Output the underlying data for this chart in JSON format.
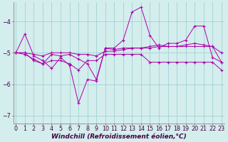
{
  "x": [
    0,
    1,
    2,
    3,
    4,
    5,
    6,
    7,
    8,
    9,
    10,
    11,
    12,
    13,
    14,
    15,
    16,
    17,
    18,
    19,
    20,
    21,
    22,
    23
  ],
  "line1": [
    -5.0,
    -4.4,
    -5.1,
    -5.25,
    -5.5,
    -5.15,
    -5.4,
    -6.6,
    -5.85,
    -5.9,
    -4.85,
    -4.85,
    -4.6,
    -3.7,
    -3.55,
    -4.45,
    -4.85,
    -4.7,
    -4.7,
    -4.6,
    -4.15,
    -4.15,
    -5.15,
    -5.3
  ],
  "line2": [
    -5.0,
    -5.05,
    -5.2,
    -5.35,
    -5.05,
    -5.1,
    -5.05,
    -5.2,
    -5.35,
    -5.85,
    -4.85,
    -4.9,
    -4.85,
    -4.85,
    -4.85,
    -4.8,
    -4.75,
    -4.8,
    -4.8,
    -4.75,
    -4.7,
    -4.75,
    -4.8,
    -5.3
  ],
  "line3": [
    -5.0,
    -5.0,
    -5.05,
    -5.1,
    -5.0,
    -5.0,
    -5.0,
    -5.05,
    -5.05,
    -5.1,
    -4.95,
    -4.95,
    -4.9,
    -4.85,
    -4.85,
    -4.85,
    -4.8,
    -4.8,
    -4.8,
    -4.8,
    -4.8,
    -4.8,
    -4.8,
    -5.0
  ],
  "line4": [
    -5.0,
    -5.0,
    -5.25,
    -5.35,
    -5.25,
    -5.25,
    -5.35,
    -5.55,
    -5.25,
    -5.25,
    -5.05,
    -5.05,
    -5.05,
    -5.05,
    -5.05,
    -5.3,
    -5.3,
    -5.3,
    -5.3,
    -5.3,
    -5.3,
    -5.3,
    -5.3,
    -5.55
  ],
  "bg_color": "#d4eded",
  "line_color": "#aa00aa",
  "grid_color": "#99cccc",
  "xlabel": "Windchill (Refroidissement éolien,°C)",
  "xlim_min": -0.3,
  "xlim_max": 23.3,
  "ylim_min": -7.25,
  "ylim_max": -3.4,
  "yticks": [
    -7,
    -6,
    -5,
    -4
  ],
  "xticks": [
    0,
    1,
    2,
    3,
    4,
    5,
    6,
    7,
    8,
    9,
    10,
    11,
    12,
    13,
    14,
    15,
    16,
    17,
    18,
    19,
    20,
    21,
    22,
    23
  ],
  "xlabel_fontsize": 6.5,
  "tick_fontsize": 5.8,
  "lw": 0.7,
  "ms": 2.8
}
